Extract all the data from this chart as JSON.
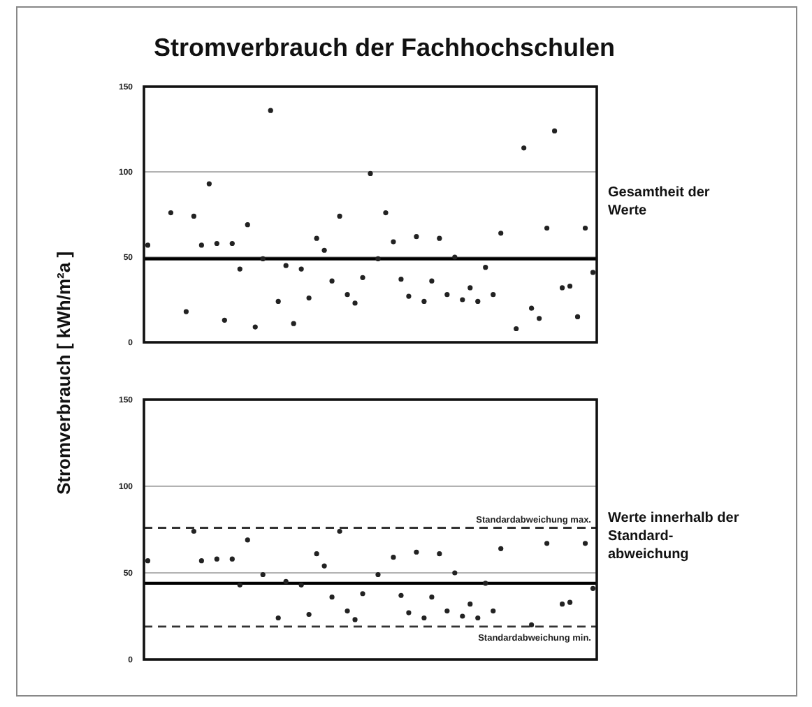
{
  "chart_data": [
    {
      "type": "scatter",
      "title": "Stromverbrauch der Fachhochschulen",
      "ylabel": "Stromverbrauch [ kWh/m²a ]",
      "categories": [
        null,
        null,
        null,
        null,
        null,
        null,
        null,
        null,
        null,
        null,
        null,
        null,
        null,
        null,
        null,
        null,
        null,
        null,
        null,
        null,
        null,
        null,
        null,
        null,
        null,
        null,
        null,
        null,
        null,
        null,
        null,
        null,
        null,
        null,
        null,
        null,
        null,
        null,
        null,
        null,
        null,
        null,
        null,
        null,
        null,
        null,
        null,
        null,
        null,
        null,
        null,
        null,
        null,
        null,
        null,
        null,
        null,
        null,
        null
      ],
      "series": [
        {
          "color": "#222222",
          "values": [
            57,
            null,
            null,
            76,
            null,
            18,
            74,
            57,
            93,
            58,
            13,
            58,
            43,
            69,
            9,
            49,
            136,
            24,
            45,
            11,
            43,
            26,
            61,
            54,
            36,
            74,
            28,
            23,
            38,
            99,
            49,
            76,
            59,
            37,
            27,
            62,
            24,
            36,
            61,
            28,
            50,
            25,
            32,
            24,
            44,
            28,
            64,
            null,
            8,
            114,
            20,
            14,
            67,
            124,
            32,
            33,
            15,
            67,
            41
          ]
        }
      ],
      "ylim": [
        0,
        150
      ],
      "yticks": [
        0,
        50,
        100,
        150
      ],
      "grid": "y",
      "marker": "circle",
      "ref_lines": [
        {
          "axis": "y",
          "value": 49,
          "color": "#000000",
          "line_style": "solid"
        }
      ],
      "annotations": [
        "Gesamtheit der\nWerte"
      ]
    },
    {
      "type": "scatter",
      "categories": [
        null,
        null,
        null,
        null,
        null,
        null,
        null,
        null,
        null,
        null,
        null,
        null,
        null,
        null,
        null,
        null,
        null,
        null,
        null,
        null,
        null,
        null,
        null,
        null,
        null,
        null,
        null,
        null,
        null,
        null,
        null,
        null,
        null,
        null,
        null,
        null,
        null,
        null,
        null,
        null,
        null,
        null,
        null,
        null,
        null,
        null,
        null,
        null,
        null,
        null,
        null,
        null,
        null,
        null,
        null,
        null,
        null,
        null,
        null
      ],
      "series": [
        {
          "color": "#222222",
          "values": [
            57,
            null,
            null,
            null,
            null,
            null,
            74,
            57,
            null,
            58,
            null,
            58,
            43,
            69,
            null,
            49,
            null,
            24,
            45,
            null,
            43,
            26,
            61,
            54,
            36,
            74,
            28,
            23,
            38,
            null,
            49,
            null,
            59,
            37,
            27,
            62,
            24,
            36,
            61,
            28,
            50,
            25,
            32,
            24,
            44,
            28,
            64,
            null,
            null,
            null,
            20,
            null,
            67,
            null,
            32,
            33,
            null,
            67,
            41
          ]
        }
      ],
      "ylim": [
        0,
        150
      ],
      "yticks": [
        0,
        50,
        100,
        150
      ],
      "grid": "y",
      "marker": "circle",
      "ref_lines": [
        {
          "axis": "y",
          "value": 44,
          "color": "#000000",
          "line_style": "solid"
        },
        {
          "axis": "y",
          "value": 76,
          "label": "Standardabweichung max.",
          "color": "#333333",
          "line_style": "dashed"
        },
        {
          "axis": "y",
          "value": 19,
          "label": "Standardabweichung min.",
          "color": "#333333",
          "line_style": "dashed"
        }
      ],
      "annotations": [
        "Werte innerhalb der\nStandard-\nabweichung"
      ]
    }
  ]
}
